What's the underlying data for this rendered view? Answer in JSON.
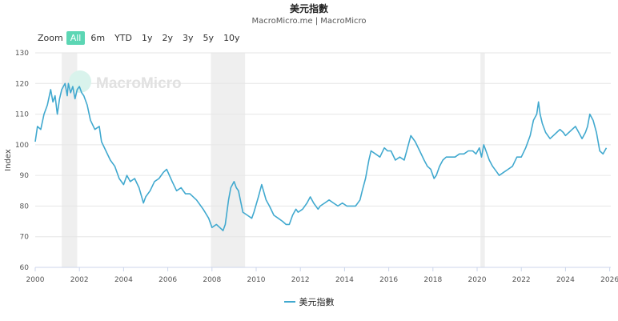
{
  "title": "美元指數",
  "subtitle": "MacroMicro.me | MacroMicro",
  "watermark": "MacroMicro",
  "zoom": {
    "label": "Zoom",
    "options": [
      "All",
      "6m",
      "YTD",
      "1y",
      "2y",
      "3y",
      "5y",
      "10y"
    ],
    "selected": "All"
  },
  "legend": {
    "label": "美元指數",
    "color": "#41a9cf"
  },
  "chart_data": {
    "type": "line",
    "title": "美元指數",
    "ylabel": "Index",
    "xlabel": "",
    "ylim": [
      60,
      130
    ],
    "xlim": [
      2000,
      2026.05
    ],
    "y_ticks": [
      60,
      70,
      80,
      90,
      100,
      110,
      120,
      130
    ],
    "x_ticks": [
      2000,
      2002,
      2004,
      2006,
      2008,
      2010,
      2012,
      2014,
      2016,
      2018,
      2020,
      2022,
      2024,
      2026
    ],
    "grid": true,
    "recession_shading": [
      [
        2001.2,
        2001.9
      ],
      [
        2007.95,
        2009.5
      ],
      [
        2020.15,
        2020.35
      ]
    ],
    "series": [
      {
        "name": "美元指數",
        "color": "#41a9cf",
        "x": [
          2000.0,
          2000.1,
          2000.25,
          2000.4,
          2000.55,
          2000.7,
          2000.8,
          2000.9,
          2001.0,
          2001.1,
          2001.2,
          2001.35,
          2001.45,
          2001.5,
          2001.6,
          2001.7,
          2001.8,
          2001.9,
          2002.0,
          2002.1,
          2002.2,
          2002.35,
          2002.5,
          2002.7,
          2002.9,
          2003.0,
          2003.2,
          2003.4,
          2003.6,
          2003.8,
          2004.0,
          2004.15,
          2004.3,
          2004.5,
          2004.7,
          2004.9,
          2005.0,
          2005.2,
          2005.4,
          2005.6,
          2005.8,
          2005.95,
          2006.2,
          2006.4,
          2006.6,
          2006.8,
          2007.0,
          2007.3,
          2007.6,
          2007.85,
          2008.0,
          2008.2,
          2008.35,
          2008.5,
          2008.6,
          2008.75,
          2008.85,
          2009.0,
          2009.1,
          2009.2,
          2009.4,
          2009.6,
          2009.8,
          2009.9,
          2010.1,
          2010.25,
          2010.45,
          2010.6,
          2010.8,
          2011.0,
          2011.2,
          2011.35,
          2011.5,
          2011.65,
          2011.8,
          2011.9,
          2012.1,
          2012.3,
          2012.45,
          2012.6,
          2012.8,
          2012.9,
          2013.1,
          2013.3,
          2013.5,
          2013.7,
          2013.9,
          2014.1,
          2014.3,
          2014.5,
          2014.7,
          2014.8,
          2014.95,
          2015.1,
          2015.2,
          2015.4,
          2015.6,
          2015.8,
          2015.95,
          2016.1,
          2016.3,
          2016.5,
          2016.7,
          2016.85,
          2017.0,
          2017.2,
          2017.4,
          2017.6,
          2017.75,
          2017.9,
          2018.05,
          2018.15,
          2018.3,
          2018.45,
          2018.6,
          2018.8,
          2019.0,
          2019.2,
          2019.4,
          2019.6,
          2019.8,
          2019.95,
          2020.1,
          2020.2,
          2020.3,
          2020.4,
          2020.55,
          2020.7,
          2020.9,
          2021.0,
          2021.2,
          2021.4,
          2021.6,
          2021.8,
          2022.0,
          2022.2,
          2022.4,
          2022.55,
          2022.7,
          2022.78,
          2022.85,
          2022.95,
          2023.1,
          2023.3,
          2023.45,
          2023.6,
          2023.75,
          2023.9,
          2024.0,
          2024.15,
          2024.3,
          2024.45,
          2024.6,
          2024.75,
          2024.9,
          2025.0,
          2025.1,
          2025.25,
          2025.4,
          2025.55,
          2025.7,
          2025.85
        ],
        "values": [
          101,
          106,
          105,
          110,
          113,
          118,
          114,
          116,
          110,
          115,
          118,
          120,
          116,
          120,
          117,
          119,
          115,
          118,
          119,
          117,
          116,
          113,
          108,
          105,
          106,
          101,
          98,
          95,
          93,
          89,
          87,
          90,
          88,
          89,
          86,
          81,
          83,
          85,
          88,
          89,
          91,
          92,
          88,
          85,
          86,
          84,
          84,
          82,
          79,
          76,
          73,
          74,
          73,
          72,
          74,
          82,
          86,
          88,
          86,
          85,
          78,
          77,
          76,
          78,
          83,
          87,
          82,
          80,
          77,
          76,
          75,
          74,
          74,
          77,
          79,
          78,
          79,
          81,
          83,
          81,
          79,
          80,
          81,
          82,
          81,
          80,
          81,
          80,
          80,
          80,
          82,
          85,
          89,
          95,
          98,
          97,
          96,
          99,
          98,
          98,
          95,
          96,
          95,
          99,
          103,
          101,
          98,
          95,
          93,
          92,
          89,
          90,
          93,
          95,
          96,
          96,
          96,
          97,
          97,
          98,
          98,
          97,
          99,
          96,
          100,
          98,
          95,
          93,
          91,
          90,
          91,
          92,
          93,
          96,
          96,
          99,
          103,
          108,
          110,
          114,
          110,
          107,
          104,
          102,
          103,
          104,
          105,
          104,
          103,
          104,
          105,
          106,
          104,
          102,
          104,
          106,
          110,
          108,
          104,
          98,
          97,
          99
        ]
      }
    ]
  }
}
